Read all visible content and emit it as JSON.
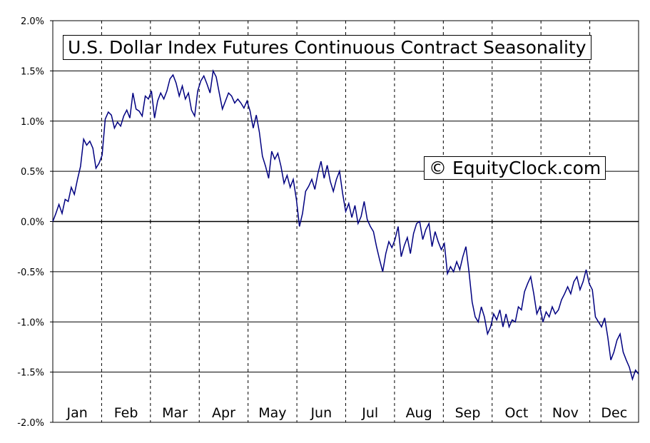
{
  "chart_data": {
    "type": "line",
    "title": "U.S. Dollar Index Futures Continuous Contract Seasonality",
    "watermark": "© EquityClock.com",
    "xlabel": "",
    "ylabel": "",
    "categories": [
      "Jan",
      "Feb",
      "Mar",
      "Apr",
      "May",
      "Jun",
      "Jul",
      "Aug",
      "Sep",
      "Oct",
      "Nov",
      "Dec"
    ],
    "y_ticks": [
      "2.0%",
      "1.5%",
      "1.0%",
      "0.5%",
      "0.0%",
      "-0.5%",
      "-1.0%",
      "-1.5%",
      "-2.0%"
    ],
    "ylim": [
      -2.0,
      2.0
    ],
    "y_unit": "%",
    "grid": {
      "horizontal": true,
      "vertical_dashed_month_separators": true
    },
    "line_color": "#000080",
    "series": [
      {
        "values": [
          [
            1,
            0.0
          ],
          [
            2,
            0.08
          ],
          [
            3,
            0.17
          ],
          [
            4,
            0.08
          ],
          [
            5,
            0.22
          ],
          [
            6,
            0.2
          ],
          [
            7,
            0.34
          ],
          [
            8,
            0.27
          ],
          [
            9,
            0.42
          ],
          [
            10,
            0.55
          ],
          [
            11,
            0.82
          ],
          [
            12,
            0.76
          ],
          [
            13,
            0.8
          ],
          [
            14,
            0.73
          ],
          [
            15,
            0.53
          ],
          [
            16,
            0.58
          ],
          [
            17,
            0.66
          ],
          [
            18,
            1.02
          ],
          [
            19,
            1.09
          ],
          [
            20,
            1.06
          ],
          [
            21,
            0.93
          ],
          [
            22,
            0.99
          ],
          [
            23,
            0.95
          ],
          [
            24,
            1.05
          ],
          [
            25,
            1.11
          ],
          [
            26,
            1.03
          ],
          [
            27,
            1.28
          ],
          [
            28,
            1.12
          ],
          [
            29,
            1.1
          ],
          [
            30,
            1.05
          ],
          [
            31,
            1.25
          ],
          [
            32,
            1.22
          ],
          [
            33,
            1.3
          ],
          [
            34,
            1.03
          ],
          [
            35,
            1.2
          ],
          [
            36,
            1.28
          ],
          [
            37,
            1.22
          ],
          [
            38,
            1.3
          ],
          [
            39,
            1.42
          ],
          [
            40,
            1.46
          ],
          [
            41,
            1.38
          ],
          [
            42,
            1.25
          ],
          [
            43,
            1.35
          ],
          [
            44,
            1.22
          ],
          [
            45,
            1.28
          ],
          [
            46,
            1.11
          ],
          [
            47,
            1.05
          ],
          [
            48,
            1.3
          ],
          [
            49,
            1.4
          ],
          [
            50,
            1.45
          ],
          [
            51,
            1.37
          ],
          [
            52,
            1.28
          ],
          [
            53,
            1.5
          ],
          [
            54,
            1.44
          ],
          [
            55,
            1.28
          ],
          [
            56,
            1.12
          ],
          [
            57,
            1.2
          ],
          [
            58,
            1.28
          ],
          [
            59,
            1.25
          ],
          [
            60,
            1.18
          ],
          [
            61,
            1.22
          ],
          [
            62,
            1.18
          ],
          [
            63,
            1.13
          ],
          [
            64,
            1.2
          ],
          [
            65,
            1.1
          ],
          [
            66,
            0.93
          ],
          [
            67,
            1.06
          ],
          [
            68,
            0.89
          ],
          [
            69,
            0.65
          ],
          [
            70,
            0.55
          ],
          [
            71,
            0.43
          ],
          [
            72,
            0.7
          ],
          [
            73,
            0.62
          ],
          [
            74,
            0.68
          ],
          [
            75,
            0.55
          ],
          [
            76,
            0.38
          ],
          [
            77,
            0.46
          ],
          [
            78,
            0.34
          ],
          [
            79,
            0.42
          ],
          [
            80,
            0.22
          ],
          [
            81,
            -0.05
          ],
          [
            82,
            0.08
          ],
          [
            83,
            0.3
          ],
          [
            84,
            0.35
          ],
          [
            85,
            0.42
          ],
          [
            86,
            0.32
          ],
          [
            87,
            0.48
          ],
          [
            88,
            0.6
          ],
          [
            89,
            0.43
          ],
          [
            90,
            0.56
          ],
          [
            91,
            0.4
          ],
          [
            92,
            0.3
          ],
          [
            93,
            0.42
          ],
          [
            94,
            0.5
          ],
          [
            95,
            0.28
          ],
          [
            96,
            0.1
          ],
          [
            97,
            0.18
          ],
          [
            98,
            0.04
          ],
          [
            99,
            0.16
          ],
          [
            100,
            -0.02
          ],
          [
            101,
            0.05
          ],
          [
            102,
            0.2
          ],
          [
            103,
            0.02
          ],
          [
            104,
            -0.05
          ],
          [
            105,
            -0.1
          ],
          [
            106,
            -0.25
          ],
          [
            107,
            -0.38
          ],
          [
            108,
            -0.5
          ],
          [
            109,
            -0.32
          ],
          [
            110,
            -0.2
          ],
          [
            111,
            -0.26
          ],
          [
            112,
            -0.18
          ],
          [
            113,
            -0.05
          ],
          [
            114,
            -0.35
          ],
          [
            115,
            -0.24
          ],
          [
            116,
            -0.16
          ],
          [
            117,
            -0.32
          ],
          [
            118,
            -0.12
          ],
          [
            119,
            -0.02
          ],
          [
            120,
            0.0
          ],
          [
            121,
            -0.18
          ],
          [
            122,
            -0.08
          ],
          [
            123,
            -0.02
          ],
          [
            124,
            -0.25
          ],
          [
            125,
            -0.1
          ],
          [
            126,
            -0.2
          ],
          [
            127,
            -0.28
          ],
          [
            128,
            -0.22
          ],
          [
            129,
            -0.52
          ],
          [
            130,
            -0.45
          ],
          [
            131,
            -0.5
          ],
          [
            132,
            -0.4
          ],
          [
            133,
            -0.48
          ],
          [
            134,
            -0.35
          ],
          [
            135,
            -0.25
          ],
          [
            136,
            -0.5
          ],
          [
            137,
            -0.8
          ],
          [
            138,
            -0.95
          ],
          [
            139,
            -1.0
          ],
          [
            140,
            -0.85
          ],
          [
            141,
            -0.95
          ],
          [
            142,
            -1.12
          ],
          [
            143,
            -1.05
          ],
          [
            144,
            -0.92
          ],
          [
            145,
            -0.98
          ],
          [
            146,
            -0.88
          ],
          [
            147,
            -1.05
          ],
          [
            148,
            -0.92
          ],
          [
            149,
            -1.05
          ],
          [
            150,
            -0.98
          ],
          [
            151,
            -1.0
          ],
          [
            152,
            -0.85
          ],
          [
            153,
            -0.88
          ],
          [
            154,
            -0.7
          ],
          [
            155,
            -0.62
          ],
          [
            156,
            -0.55
          ],
          [
            157,
            -0.72
          ],
          [
            158,
            -0.92
          ],
          [
            159,
            -0.85
          ],
          [
            160,
            -1.0
          ],
          [
            161,
            -0.9
          ],
          [
            162,
            -0.95
          ],
          [
            163,
            -0.85
          ],
          [
            164,
            -0.92
          ],
          [
            165,
            -0.88
          ],
          [
            166,
            -0.78
          ],
          [
            167,
            -0.72
          ],
          [
            168,
            -0.65
          ],
          [
            169,
            -0.72
          ],
          [
            170,
            -0.6
          ],
          [
            171,
            -0.55
          ],
          [
            172,
            -0.68
          ],
          [
            173,
            -0.6
          ],
          [
            174,
            -0.48
          ],
          [
            175,
            -0.62
          ],
          [
            176,
            -0.68
          ],
          [
            177,
            -0.95
          ],
          [
            178,
            -1.0
          ],
          [
            179,
            -1.05
          ],
          [
            180,
            -0.96
          ],
          [
            181,
            -1.15
          ],
          [
            182,
            -1.38
          ],
          [
            183,
            -1.3
          ],
          [
            184,
            -1.18
          ],
          [
            185,
            -1.12
          ],
          [
            186,
            -1.3
          ],
          [
            187,
            -1.38
          ],
          [
            188,
            -1.45
          ],
          [
            189,
            -1.57
          ],
          [
            190,
            -1.48
          ],
          [
            191,
            -1.52
          ]
        ]
      }
    ]
  }
}
